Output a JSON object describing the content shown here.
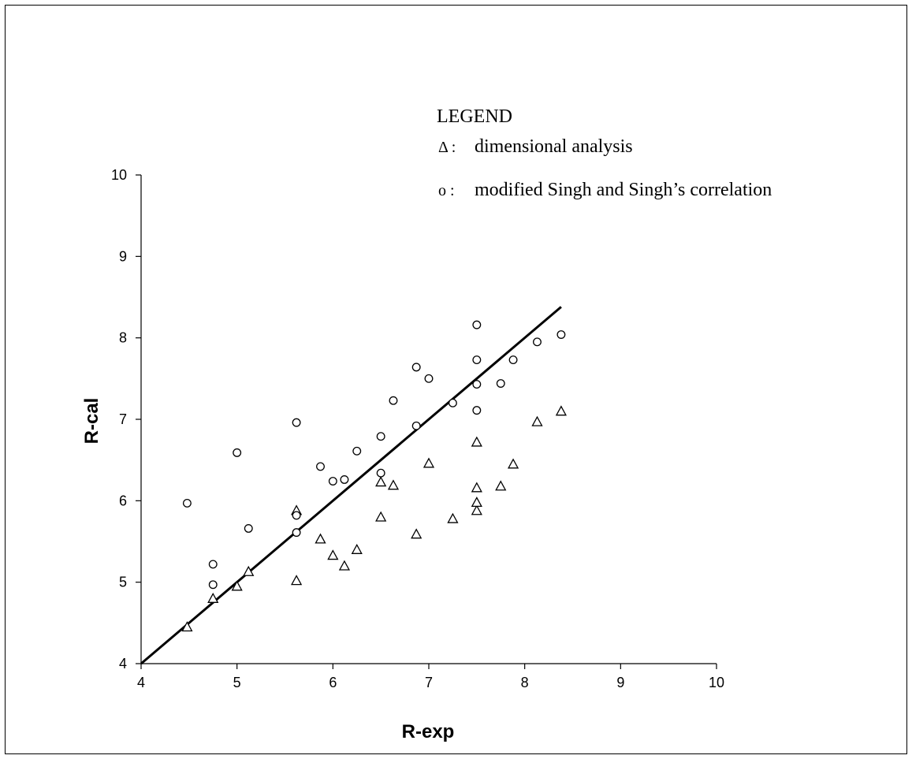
{
  "chart_data": {
    "type": "scatter",
    "xlabel": "R-exp",
    "ylabel": "R-cal",
    "xlim": [
      4,
      10
    ],
    "ylim": [
      4,
      10
    ],
    "xticks": [
      "4",
      "5",
      "6",
      "7",
      "8",
      "9",
      "10"
    ],
    "yticks": [
      "4",
      "5",
      "6",
      "7",
      "8",
      "9",
      "10"
    ],
    "grid": false,
    "legend": {
      "title": "LEGEND",
      "position": "top-right",
      "entries": [
        {
          "symbol": "Δ :",
          "label": "dimensional analysis"
        },
        {
          "symbol": "o :",
          "label": "modified Singh and Singh’s correlation"
        }
      ]
    },
    "series": [
      {
        "name": "dimensional analysis",
        "marker": "triangle",
        "points": [
          [
            4.48,
            4.45
          ],
          [
            4.75,
            4.8
          ],
          [
            5.0,
            4.95
          ],
          [
            5.12,
            5.13
          ],
          [
            5.62,
            5.02
          ],
          [
            5.62,
            5.88
          ],
          [
            5.87,
            5.53
          ],
          [
            6.0,
            5.33
          ],
          [
            6.12,
            5.2
          ],
          [
            6.25,
            5.4
          ],
          [
            6.5,
            5.8
          ],
          [
            6.5,
            6.23
          ],
          [
            6.63,
            6.19
          ],
          [
            6.87,
            5.59
          ],
          [
            7.0,
            6.46
          ],
          [
            7.25,
            5.78
          ],
          [
            7.5,
            5.88
          ],
          [
            7.5,
            5.98
          ],
          [
            7.5,
            6.16
          ],
          [
            7.5,
            6.72
          ],
          [
            7.75,
            6.18
          ],
          [
            7.88,
            6.45
          ],
          [
            8.13,
            6.97
          ],
          [
            8.38,
            7.1
          ]
        ]
      },
      {
        "name": "modified Singh and Singh’s correlation",
        "marker": "circle",
        "points": [
          [
            4.48,
            5.97
          ],
          [
            4.75,
            4.97
          ],
          [
            4.75,
            5.22
          ],
          [
            5.0,
            6.59
          ],
          [
            5.12,
            5.66
          ],
          [
            5.62,
            5.61
          ],
          [
            5.62,
            5.82
          ],
          [
            5.62,
            6.96
          ],
          [
            5.87,
            6.42
          ],
          [
            6.0,
            6.24
          ],
          [
            6.12,
            6.26
          ],
          [
            6.25,
            6.61
          ],
          [
            6.5,
            6.34
          ],
          [
            6.5,
            6.79
          ],
          [
            6.63,
            7.23
          ],
          [
            6.87,
            6.92
          ],
          [
            6.87,
            7.64
          ],
          [
            7.0,
            7.5
          ],
          [
            7.25,
            7.2
          ],
          [
            7.5,
            7.11
          ],
          [
            7.5,
            7.43
          ],
          [
            7.5,
            7.73
          ],
          [
            7.5,
            8.16
          ],
          [
            7.75,
            7.44
          ],
          [
            7.88,
            7.73
          ],
          [
            8.13,
            7.95
          ],
          [
            8.38,
            8.04
          ]
        ]
      }
    ],
    "reference_line": {
      "from": [
        4,
        4
      ],
      "to": [
        8.38,
        8.38
      ]
    }
  }
}
